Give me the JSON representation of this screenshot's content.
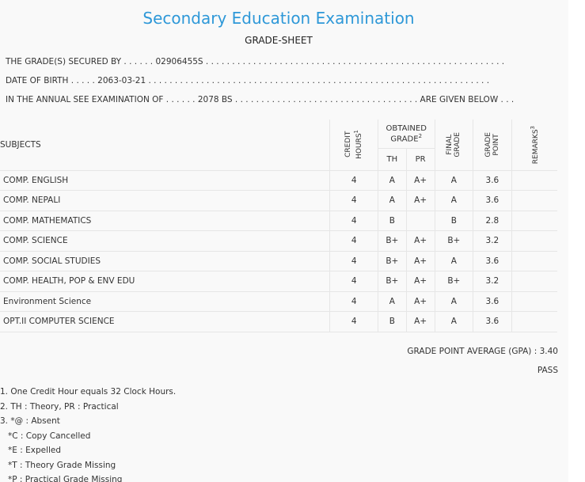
{
  "title": "Secondary Education Examination",
  "subtitle": "GRADE-SHEET",
  "info": {
    "line1": "THE GRADE(S) SECURED BY . . . . . . 02906455S . . . . . . . . . . . . . . . . . . . . . . . . . . . . . . . . . . . . . . . . . . . . . . . . . . . . . . . . .",
    "line2": "DATE OF BIRTH . . . . . 2063-03-21 . . . . . . . . . . . . . . . . . . . . . . . . . . . . . . . . . . . . . . . . . . . . . . . . . . . . . . . . . . . . . . . . .",
    "line3": "IN THE ANNUAL SEE EXAMINATION OF . . . . . . 2078 BS . . . . . . . . . . . . . . . . . . . . . . . . . . . . . . . . . . . ARE GIVEN BELOW . . ."
  },
  "table": {
    "headers": {
      "subjects": "SUBJECTS",
      "credit_hours_line1": "CREDIT",
      "credit_hours_line2": "HOURS",
      "credit_sup": "1",
      "obtained_line1": "OBTAINED",
      "obtained_line2": "GRADE",
      "obtained_sup": "2",
      "th": "TH",
      "pr": "PR",
      "final_line1": "FINAL",
      "final_line2": "GRADE",
      "grade_point_line1": "GRADE",
      "grade_point_line2": "POINT",
      "remarks": "REMARKS",
      "remarks_sup": "3"
    },
    "rows": [
      {
        "subject": "COMP. ENGLISH",
        "credit": "4",
        "th": "A",
        "pr": "A+",
        "final": "A",
        "gp": "3.6",
        "remarks": ""
      },
      {
        "subject": "COMP. NEPALI",
        "credit": "4",
        "th": "A",
        "pr": "A+",
        "final": "A",
        "gp": "3.6",
        "remarks": ""
      },
      {
        "subject": "COMP. MATHEMATICS",
        "credit": "4",
        "th": "B",
        "pr": "",
        "final": "B",
        "gp": "2.8",
        "remarks": ""
      },
      {
        "subject": "COMP. SCIENCE",
        "credit": "4",
        "th": "B+",
        "pr": "A+",
        "final": "B+",
        "gp": "3.2",
        "remarks": ""
      },
      {
        "subject": "COMP. SOCIAL STUDIES",
        "credit": "4",
        "th": "B+",
        "pr": "A+",
        "final": "A",
        "gp": "3.6",
        "remarks": ""
      },
      {
        "subject": "COMP. HEALTH, POP & ENV EDU",
        "credit": "4",
        "th": "B+",
        "pr": "A+",
        "final": "B+",
        "gp": "3.2",
        "remarks": ""
      },
      {
        "subject": "Environment Science",
        "credit": "4",
        "th": "A",
        "pr": "A+",
        "final": "A",
        "gp": "3.6",
        "remarks": ""
      },
      {
        "subject": "OPT.II COMPUTER SCIENCE",
        "credit": "4",
        "th": "B",
        "pr": "A+",
        "final": "A",
        "gp": "3.6",
        "remarks": ""
      }
    ]
  },
  "gpa": "GRADE POINT AVERAGE (GPA) : 3.40",
  "result": "PASS",
  "notes": [
    "1. One Credit Hour equals 32 Clock Hours.",
    "2. TH : Theory, PR : Practical",
    "3. *@ : Absent",
    "*C : Copy Cancelled",
    "*E : Expelled",
    "*T : Theory Grade Missing",
    "*P : Practical Grade Missing"
  ]
}
